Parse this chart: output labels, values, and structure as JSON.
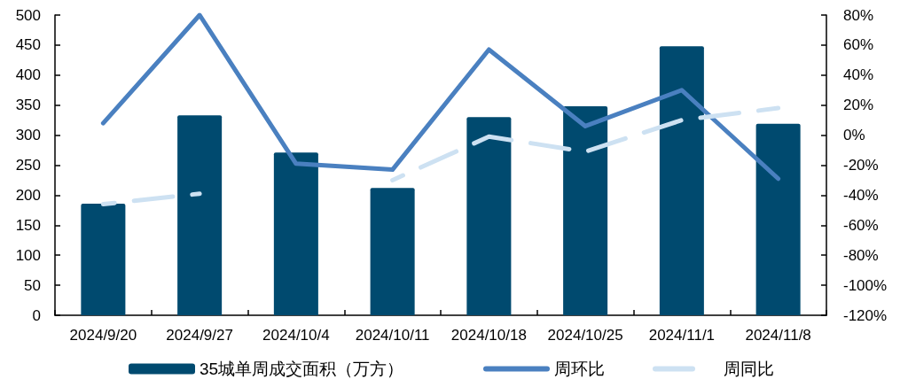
{
  "chart_data": {
    "type": "bar",
    "categories": [
      "2024/9/20",
      "2024/9/27",
      "2024/10/4",
      "2024/10/11",
      "2024/10/18",
      "2024/10/25",
      "2024/11/1",
      "2024/11/8"
    ],
    "series": [
      {
        "name": "35城单周成交面积（万方）",
        "color": "#004a6f",
        "values": [
          186,
          333,
          271,
          212,
          330,
          348,
          448,
          319
        ]
      },
      {
        "name": "周环比",
        "type": "line",
        "axis": "y2",
        "color": "#4a80c0",
        "line_style": "solid",
        "values": [
          8,
          80,
          -19,
          -23,
          57,
          6,
          30,
          -29
        ]
      },
      {
        "name": "周同比",
        "type": "line",
        "axis": "y2",
        "color": "#cde1f2",
        "line_style": "dashed",
        "values": [
          -46,
          -39,
          null,
          -30,
          -1,
          -11,
          10,
          18
        ]
      }
    ],
    "ylim": [
      0,
      500
    ],
    "yticks": [
      0,
      50,
      100,
      150,
      200,
      250,
      300,
      350,
      400,
      450,
      500
    ],
    "y2lim": [
      -120,
      80
    ],
    "y2ticks": [
      {
        "value": -120,
        "label": "-120%"
      },
      {
        "value": -100,
        "label": "-100%"
      },
      {
        "value": -80,
        "label": "-80%"
      },
      {
        "value": -60,
        "label": "-60%"
      },
      {
        "value": -40,
        "label": "-40%"
      },
      {
        "value": -20,
        "label": "-20%"
      },
      {
        "value": 0,
        "label": "0%"
      },
      {
        "value": 20,
        "label": "20%"
      },
      {
        "value": 40,
        "label": "40%"
      },
      {
        "value": 60,
        "label": "60%"
      },
      {
        "value": 80,
        "label": "80%"
      }
    ],
    "grid": false,
    "legend": "bottom",
    "marker": "none"
  }
}
